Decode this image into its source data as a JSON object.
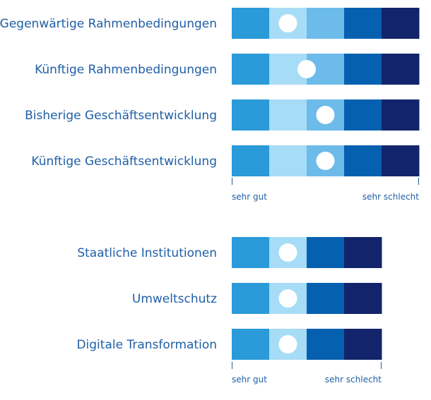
{
  "colors": {
    "label_text": "#1f5fa6",
    "axis": "#1f5fa6",
    "marker": "#ffffff"
  },
  "chart_data": [
    {
      "type": "rating-scale",
      "palette": [
        "#2a9ad8",
        "#a7dcf6",
        "#6cbbea",
        "#0561b0",
        "#12246b"
      ],
      "rows": [
        {
          "label": "Gegenwärtige Rahmenbedingungen",
          "score": 1.5
        },
        {
          "label": "Künftige Rahmenbedingungen",
          "score": 2.0
        },
        {
          "label": "Bisherige Geschäftsentwicklung",
          "score": 2.5
        },
        {
          "label": "Künftige Geschäftsentwicklung",
          "score": 2.5
        }
      ],
      "scale": {
        "min": 0,
        "max": 5,
        "min_label": "sehr gut",
        "max_label": "sehr schlecht"
      }
    },
    {
      "type": "rating-scale",
      "palette": [
        "#2a9ad8",
        "#a7dcf6",
        "#0561b0",
        "#12246b"
      ],
      "rows": [
        {
          "label": "Staatliche Institutionen",
          "score": 1.5
        },
        {
          "label": "Umweltschutz",
          "score": 1.5
        },
        {
          "label": "Digitale Transformation",
          "score": 1.5
        }
      ],
      "scale": {
        "min": 0,
        "max": 4,
        "min_label": "sehr gut",
        "max_label": "sehr schlecht"
      }
    }
  ]
}
